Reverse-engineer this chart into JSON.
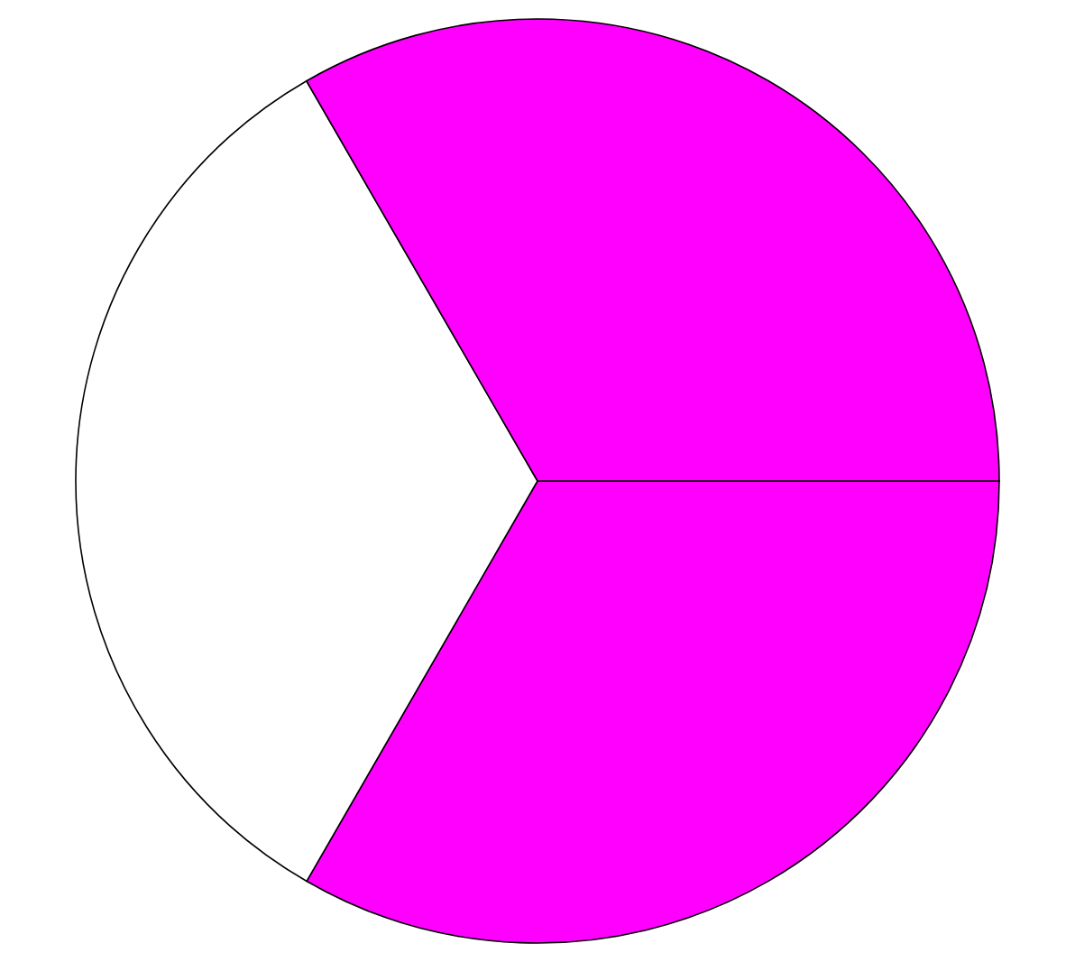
{
  "chart_data": {
    "type": "pie",
    "categories": [
      null,
      null,
      null
    ],
    "values": [
      33.33,
      33.33,
      33.34
    ],
    "colors": [
      "#ff00ff",
      "#ffffff",
      "#ff00ff"
    ]
  }
}
